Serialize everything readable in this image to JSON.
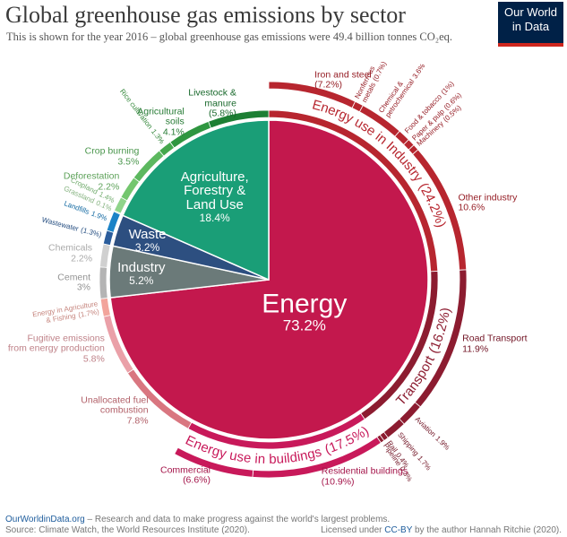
{
  "chart_data": {
    "type": "sunburst",
    "title": "Global greenhouse gas emissions by sector",
    "subtitle": "This is shown for the year 2016 – global greenhouse gas emissions were 49.4 billion tonnes CO₂eq.",
    "sectors": {
      "names": [
        "Energy",
        "Industry",
        "Waste",
        "Agriculture,\nForestry &\nLand Use"
      ],
      "values": [
        73.2,
        5.2,
        3.2,
        18.4
      ],
      "value_labels": [
        "73.2%",
        "5.2%",
        "3.2%",
        "18.4%"
      ],
      "colors": [
        "#c3184d",
        "#6b7a79",
        "#2d4f80",
        "#1a9e77"
      ]
    },
    "subsectors": {
      "names": [
        "Energy use in Industry",
        "Transport",
        "Energy use in buildings",
        "Unallocated fuel\ncombustion",
        "Fugitive emissions\nfrom energy production",
        "Energy in Agriculture\n& Fishing",
        "Cement",
        "Chemicals",
        "Wastewater",
        "Landfills",
        "Grassland",
        "Cropland",
        "Deforestation",
        "Crop burning",
        "Rice cultivation",
        "Agricultural\nsoils",
        "Livestock &\nmanure"
      ],
      "values": [
        24.2,
        16.2,
        17.5,
        7.8,
        5.8,
        1.7,
        3,
        2.2,
        1.3,
        1.9,
        0.1,
        1.4,
        2.2,
        3.5,
        1.3,
        4.1,
        5.8
      ],
      "value_labels": [
        "(24.2%)",
        "(16.2%)",
        "(17.5%)",
        "7.8%",
        "5.8%",
        "(1.7%)",
        "3%",
        "2.2%",
        "(1.3%)",
        "1.9%",
        "0.1%",
        "1.4%",
        "2.2%",
        "3.5%",
        "1.3%",
        "4.1%",
        "(5.8%)"
      ],
      "colors": [
        "#b7262f",
        "#8c1c30",
        "#c8195a",
        "#d97680",
        "#eaa0a8",
        "#f2a49b",
        "#b4b4b4",
        "#d0d0d0",
        "#2b5d9c",
        "#1b83c7",
        "#a6dca0",
        "#8fd48a",
        "#73c66e",
        "#5cb85f",
        "#45a84d",
        "#2f9640",
        "#1d7f34"
      ]
    },
    "subsubsectors": {
      "names": [
        "Iron and steel",
        "Nonferrous\nmetals",
        "Chemical &\npetrochemical",
        "Food & tobacco",
        "Paper & pulp",
        "Machinery",
        "Other industry",
        "Road Transport",
        "Aviation",
        "Shipping",
        "Rail",
        "Pipeline",
        "Residential buildings",
        "Commercial"
      ],
      "values": [
        7.2,
        0.7,
        3.6,
        1,
        0.6,
        0.5,
        10.6,
        11.9,
        1.9,
        1.7,
        0.4,
        0.3,
        10.9,
        6.6
      ],
      "value_labels": [
        "(7.2%)",
        "(0.7%)",
        "3.6%",
        "(1%)",
        "(0.6%)",
        "(0.5%)",
        "10.6%",
        "11.9%",
        "1.9%",
        "1.7%",
        "0.4%",
        "0.3%",
        "(10.9%)",
        "(6.6%)"
      ],
      "colors": [
        "#b7262f",
        "#b7262f",
        "#b7262f",
        "#b7262f",
        "#b7262f",
        "#b7262f",
        "#b7262f",
        "#8c1c30",
        "#8c1c30",
        "#8c1c30",
        "#8c1c30",
        "#8c1c30",
        "#c8195a",
        "#c8195a"
      ]
    }
  },
  "logo": "Our World\nin Data",
  "footer": {
    "site": "OurWorldinData.org",
    "tagline": "– Research and data to make progress against the world's largest problems.",
    "source": "Source: Climate Watch, the World Resources Institute (2020).",
    "license_prefix": "Licensed under",
    "license_link": "CC-BY",
    "license_suffix": "by the author Hannah Ritchie (2020)."
  }
}
